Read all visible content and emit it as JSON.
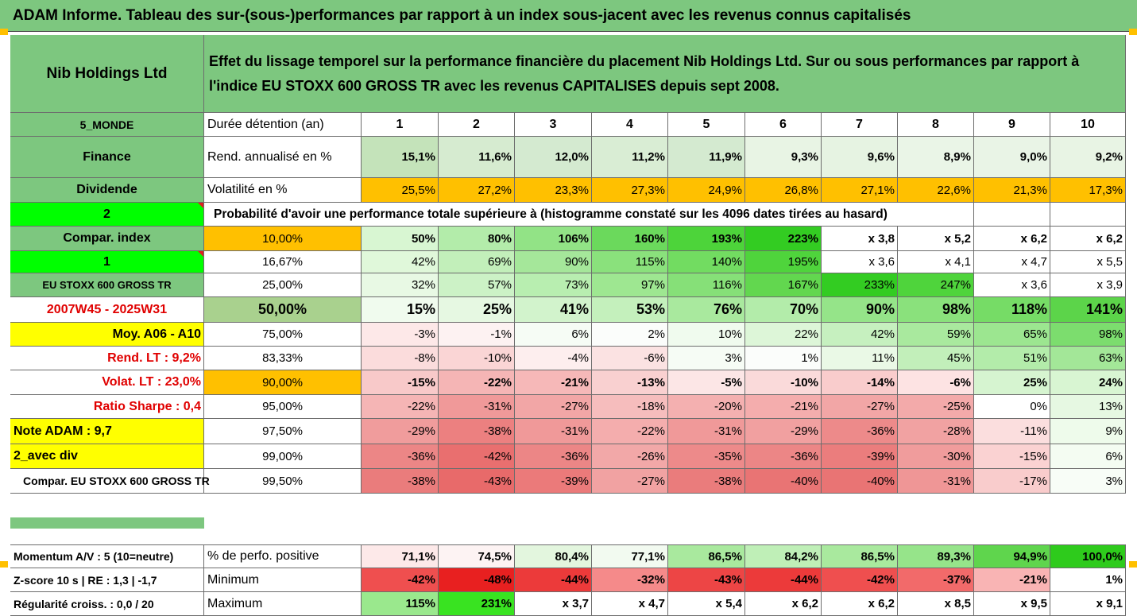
{
  "title": "ADAM Informe. Tableau des sur-(sous-)performances par rapport à un index sous-jacent avec les revenus connus capitalisés",
  "company": "Nib Holdings Ltd",
  "description": "Effet du lissage temporel sur la performance financière du placement Nib Holdings Ltd. Sur ou sous performances par rapport à l'indice EU STOXX 600 GROSS TR avec les revenus CAPITALISES depuis sept 2008.",
  "side": {
    "monde": "5_MONDE",
    "sector": "Finance",
    "dividend": "Dividende",
    "two": "2",
    "compar_index": "Compar. index",
    "one": "1",
    "index_name": "EU STOXX 600 GROSS TR",
    "period": "2007W45 - 2025W31",
    "moy": "Moy. A06 - A10",
    "rend_lt": "Rend. LT :   9,2%",
    "volat_lt": "Volat. LT :   23,0%",
    "sharpe": "Ratio Sharpe :   0,4",
    "note": "Note ADAM : 9,7",
    "avec_div": "2_avec div",
    "compar_full": "Compar. EU STOXX 600 GROSS TR",
    "momentum": "Momentum A/V : 5 (10=neutre)",
    "zscore": "Z-score 10 s  |  RE : 1,3  |  -1,7",
    "regularite": "Régularité croiss. : 0,0 / 20"
  },
  "labels": {
    "duree": "Durée détention (an)",
    "rend": "Rend. annualisé en %",
    "volat": "Volatilité en %",
    "prob": "Probabilité d'avoir une performance totale supérieure à (histogramme constaté sur les 4096 dates tirées au hasard)",
    "pos": "% de perfo. positive",
    "min": "Minimum",
    "max": "Maximum"
  },
  "years": [
    "1",
    "2",
    "3",
    "4",
    "5",
    "6",
    "7",
    "8",
    "9",
    "10"
  ],
  "rend": [
    "15,1%",
    "11,6%",
    "12,0%",
    "11,2%",
    "11,9%",
    "9,3%",
    "9,6%",
    "8,9%",
    "9,0%",
    "9,2%"
  ],
  "volat": [
    "25,5%",
    "27,2%",
    "23,3%",
    "27,3%",
    "24,9%",
    "26,8%",
    "27,1%",
    "22,6%",
    "21,3%",
    "17,3%"
  ],
  "quantiles": [
    {
      "p": "10,00%",
      "v": [
        "50%",
        "80%",
        "106%",
        "160%",
        "193%",
        "223%",
        "x 3,8",
        "x 5,2",
        "x 6,2",
        "x 6,2"
      ]
    },
    {
      "p": "16,67%",
      "v": [
        "42%",
        "69%",
        "90%",
        "115%",
        "140%",
        "195%",
        "x 3,6",
        "x 4,1",
        "x 4,7",
        "x 5,5"
      ]
    },
    {
      "p": "25,00%",
      "v": [
        "32%",
        "57%",
        "73%",
        "97%",
        "116%",
        "167%",
        "233%",
        "247%",
        "x 3,6",
        "x 3,9"
      ]
    },
    {
      "p": "50,00%",
      "v": [
        "15%",
        "25%",
        "41%",
        "53%",
        "76%",
        "70%",
        "90%",
        "98%",
        "118%",
        "141%"
      ]
    },
    {
      "p": "75,00%",
      "v": [
        "-3%",
        "-1%",
        "6%",
        "2%",
        "10%",
        "22%",
        "42%",
        "59%",
        "65%",
        "98%"
      ]
    },
    {
      "p": "83,33%",
      "v": [
        "-8%",
        "-10%",
        "-4%",
        "-6%",
        "3%",
        "1%",
        "11%",
        "45%",
        "51%",
        "63%"
      ]
    },
    {
      "p": "90,00%",
      "v": [
        "-15%",
        "-22%",
        "-21%",
        "-13%",
        "-5%",
        "-10%",
        "-14%",
        "-6%",
        "25%",
        "24%"
      ]
    },
    {
      "p": "95,00%",
      "v": [
        "-22%",
        "-31%",
        "-27%",
        "-18%",
        "-20%",
        "-21%",
        "-27%",
        "-25%",
        "0%",
        "13%"
      ]
    },
    {
      "p": "97,50%",
      "v": [
        "-29%",
        "-38%",
        "-31%",
        "-22%",
        "-31%",
        "-29%",
        "-36%",
        "-28%",
        "-11%",
        "9%"
      ]
    },
    {
      "p": "99,00%",
      "v": [
        "-36%",
        "-42%",
        "-36%",
        "-26%",
        "-35%",
        "-36%",
        "-39%",
        "-30%",
        "-15%",
        "6%"
      ]
    },
    {
      "p": "99,50%",
      "v": [
        "-38%",
        "-43%",
        "-39%",
        "-27%",
        "-38%",
        "-40%",
        "-40%",
        "-31%",
        "-17%",
        "3%"
      ]
    }
  ],
  "positive": [
    "71,1%",
    "74,5%",
    "80,4%",
    "77,1%",
    "86,5%",
    "84,2%",
    "86,5%",
    "89,3%",
    "94,9%",
    "100,0%"
  ],
  "minimum": [
    "-42%",
    "-48%",
    "-44%",
    "-32%",
    "-43%",
    "-44%",
    "-42%",
    "-37%",
    "-21%",
    "1%"
  ],
  "maximum": [
    "115%",
    "231%",
    "x 3,7",
    "x 4,7",
    "x 5,4",
    "x 6,2",
    "x 6,2",
    "x 8,5",
    "x 9,5",
    "x 9,1"
  ],
  "colors": {
    "rend": [
      "#c4e3ba",
      "#d6ebd0",
      "#d4ead0",
      "#d9edd4",
      "#d4ead0",
      "#e8f4e4",
      "#e6f3e2",
      "#eaf5e7",
      "#e9f4e6",
      "#e8f4e4"
    ],
    "volat": [
      "#ffc000",
      "#ffc000",
      "#ffc000",
      "#ffc000",
      "#ffc000",
      "#ffc000",
      "#ffc000",
      "#ffc000",
      "#ffc000",
      "#ffc000"
    ],
    "quantiles": [
      [
        "#d8f6d2",
        "#b3ecaa",
        "#92e386",
        "#6bd95c",
        "#4dd43a",
        "#33cc22",
        "#ffffff",
        "#ffffff",
        "#ffffff",
        "#ffffff"
      ],
      [
        "#e0f8da",
        "#c2efba",
        "#a5e79a",
        "#8ae17c",
        "#72dc61",
        "#4fd43c",
        "#ffffff",
        "#ffffff",
        "#ffffff",
        "#ffffff"
      ],
      [
        "#e8f9e4",
        "#ccf2c6",
        "#b8eeb0",
        "#9ee791",
        "#86e078",
        "#62d74f",
        "#33cc22",
        "#4fd43c",
        "#ffffff",
        "#ffffff"
      ],
      [
        "#f0fbee",
        "#e6f8e2",
        "#d2f3cc",
        "#c4f0bc",
        "#a9e99e",
        "#b3ecaa",
        "#95e489",
        "#8ae17c",
        "#76dc66",
        "#5cd44a"
      ],
      [
        "#fde8e8",
        "#fdf2f2",
        "#f6fcf5",
        "#fbfdfb",
        "#f0fbee",
        "#ddf6d8",
        "#c6f0bf",
        "#a9e99e",
        "#9ce690",
        "#7cdd6e"
      ],
      [
        "#fbdcdc",
        "#fad5d5",
        "#fdeeee",
        "#fbe2e2",
        "#f6fcf5",
        "#fbfdfb",
        "#eaf9e6",
        "#c2efba",
        "#b3ecaa",
        "#a3e798"
      ],
      [
        "#f8c9c9",
        "#f5b5b5",
        "#f6b8b8",
        "#f9d0d0",
        "#fce6e6",
        "#fadada",
        "#f9cccc",
        "#fde3e3",
        "#d6f4d0",
        "#d8f5d2"
      ],
      [
        "#f5b5b5",
        "#f09999",
        "#f2a6a6",
        "#f6bdbd",
        "#f4b0b0",
        "#f4adad",
        "#f2a6a6",
        "#f3aaaa",
        "#ffffff",
        "#e6f8e2"
      ],
      [
        "#f09c9c",
        "#ec8080",
        "#f09999",
        "#f4adad",
        "#f09999",
        "#f1a0a0",
        "#ed8a8a",
        "#f1a2a2",
        "#fbdede",
        "#eefbeb"
      ],
      [
        "#ec8686",
        "#e96f6f",
        "#ec8686",
        "#f2a8a8",
        "#ed8a8a",
        "#ec8686",
        "#eb7d7d",
        "#f09c9c",
        "#fad2d2",
        "#f4fcf2"
      ],
      [
        "#ea7c7c",
        "#e86a6a",
        "#eb7a7a",
        "#f1a2a2",
        "#ea7c7c",
        "#e97474",
        "#e97474",
        "#ef9696",
        "#f9cccc",
        "#f8fdf7"
      ]
    ],
    "positive": [
      "#fde9e9",
      "#fdf3f3",
      "#e3f6de",
      "#f2faf0",
      "#a9e99e",
      "#bfefb7",
      "#a9e99e",
      "#96e48a",
      "#5fd54d",
      "#2ecb1c"
    ],
    "minimum": [
      "#ef4f4f",
      "#e82020",
      "#ec3a3a",
      "#f58a8a",
      "#ed4545",
      "#ec3a3a",
      "#ef4f4f",
      "#f26a6a",
      "#f9b4b4",
      "#ffffff"
    ],
    "maximum": [
      "#9ae88d",
      "#39e321",
      "#ffffff",
      "#ffffff",
      "#ffffff",
      "#ffffff",
      "#ffffff",
      "#ffffff",
      "#ffffff",
      "#ffffff"
    ]
  }
}
